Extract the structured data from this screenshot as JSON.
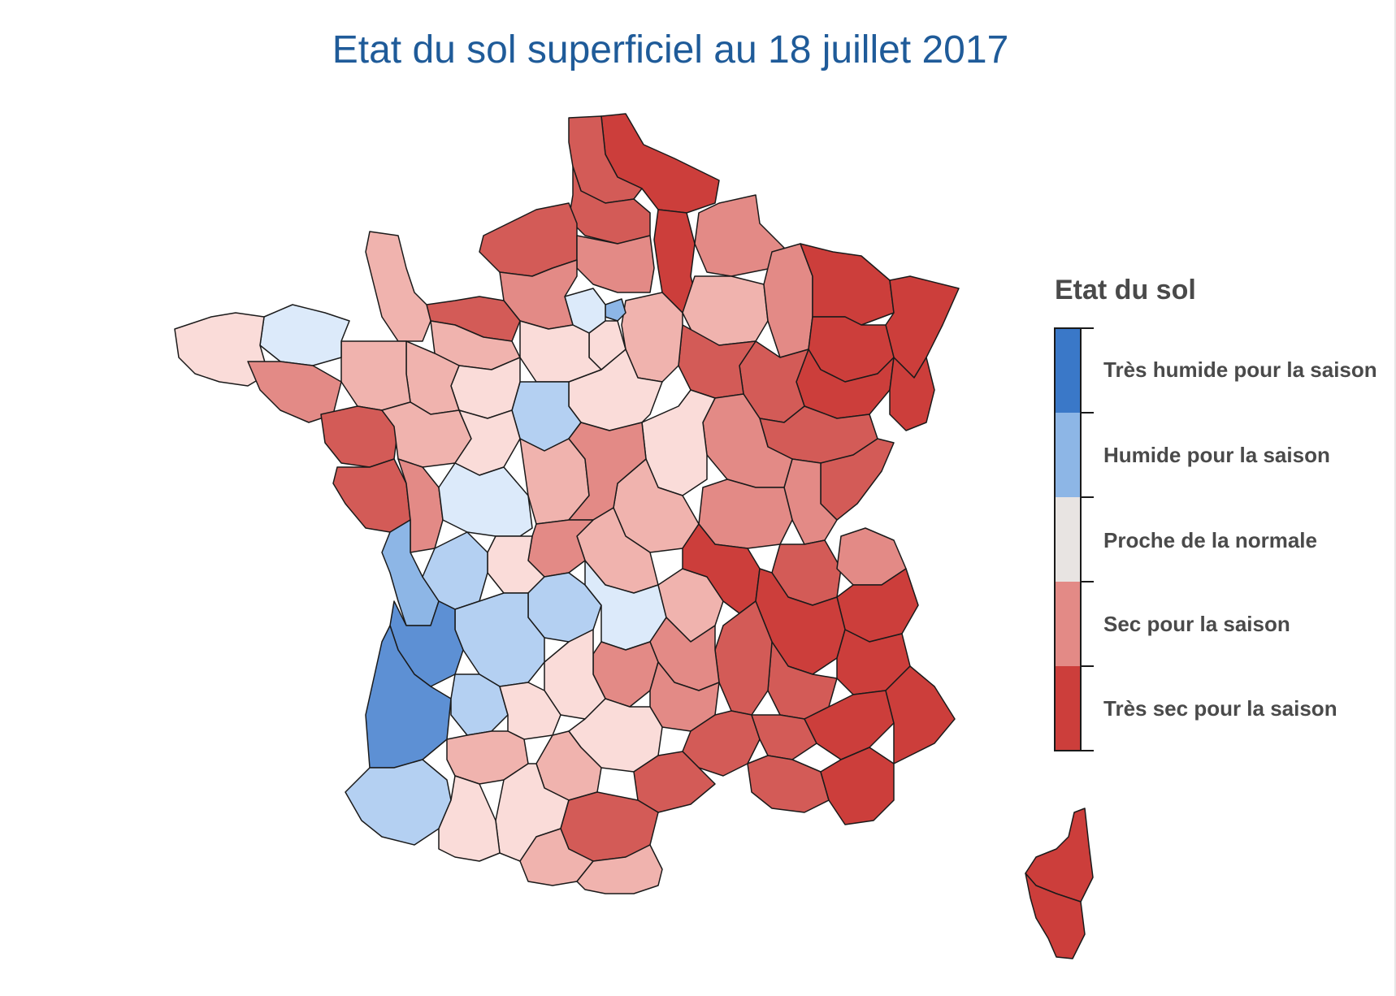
{
  "title": "Etat du sol superficiel au 18 juillet 2017",
  "legend": {
    "title": "Etat du sol",
    "items": [
      {
        "label": "Très humide pour la saison",
        "color": "#3a78c8"
      },
      {
        "label": "Humide pour la saison",
        "color": "#8db6e6"
      },
      {
        "label": "Proche de la normale",
        "color": "#e8e4e2"
      },
      {
        "label": "Sec pour la saison",
        "color": "#e38a86"
      },
      {
        "label": "Très sec pour la saison",
        "color": "#cc3e3b"
      }
    ]
  },
  "colors": {
    "title": "#1f5b99",
    "border": "#1a1a1a",
    "very_dry": "#cc3e3b",
    "dry": "#e38a86",
    "slightly_dry": "#f0b3ae",
    "near_normal": "#fadcd9",
    "slightly_wet": "#dceafa",
    "wet": "#b4d0f2",
    "very_wet": "#5d90d4"
  }
}
